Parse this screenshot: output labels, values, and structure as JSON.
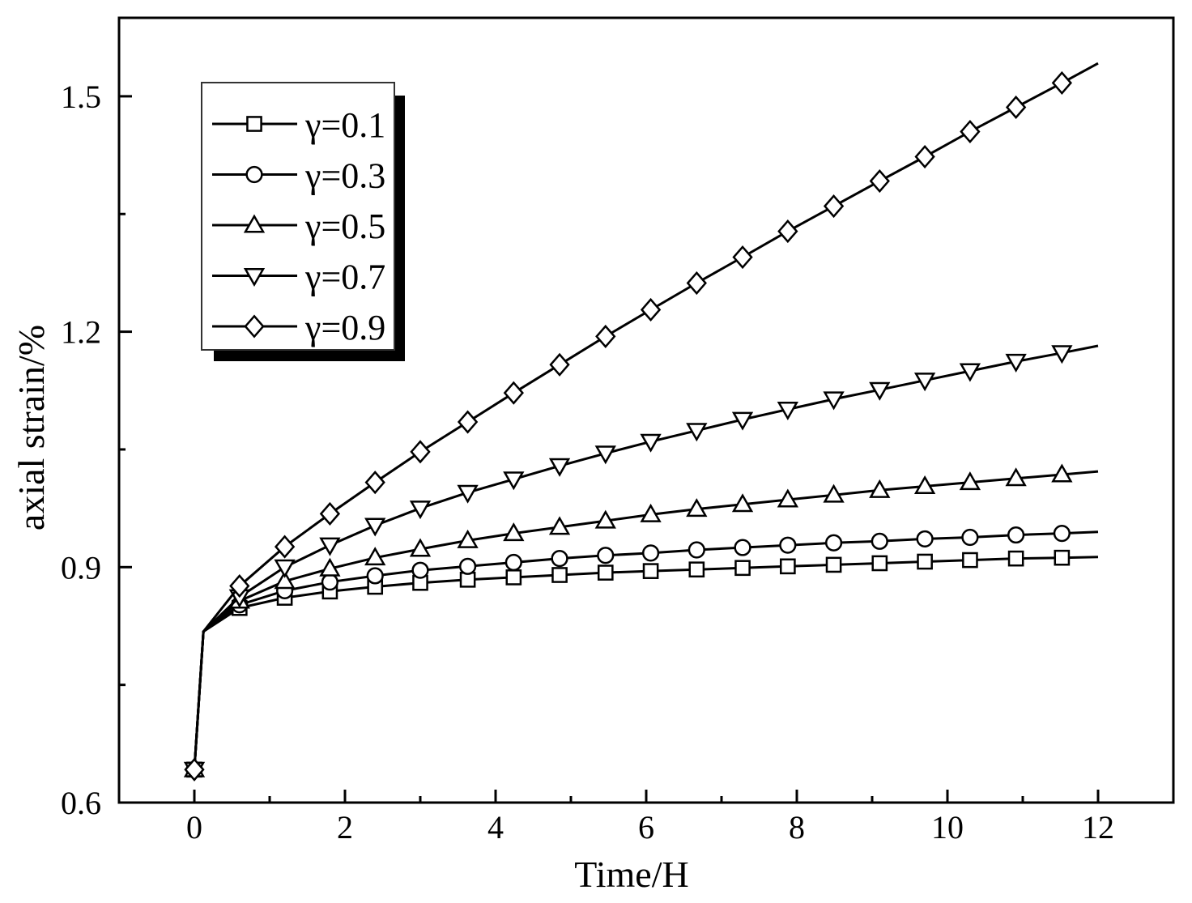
{
  "chart_data": {
    "type": "line",
    "title": "",
    "xlabel": "Time/H",
    "ylabel": "axial strain/%",
    "xlim": [
      -1,
      13
    ],
    "ylim": [
      0.6,
      1.6
    ],
    "xticks": [
      0,
      2,
      4,
      6,
      8,
      10,
      12
    ],
    "xtick_labels": [
      "0",
      "2",
      "4",
      "6",
      "8",
      "10",
      "12"
    ],
    "yticks": [
      0.6,
      0.9,
      1.2,
      1.5
    ],
    "ytick_labels": [
      "0.6",
      "0.9",
      "1.2",
      "1.5"
    ],
    "grid": false,
    "legend_position": "top-left",
    "marker_x": [
      0,
      0.6,
      1.2,
      1.8,
      2.4,
      3.0,
      3.63,
      4.24,
      4.85,
      5.46,
      6.06,
      6.67,
      7.28,
      7.88,
      8.49,
      9.1,
      9.7,
      10.3,
      10.91,
      11.52
    ],
    "series": [
      {
        "name": "γ=0.1",
        "marker": "square",
        "curve_x": [
          0,
          0.12,
          0.6,
          1.2,
          1.8,
          2.4,
          3.0,
          3.63,
          4.24,
          4.85,
          5.46,
          6.06,
          6.67,
          7.28,
          7.88,
          8.49,
          9.1,
          9.7,
          10.3,
          10.91,
          11.52,
          12.0
        ],
        "curve_y": [
          0.642,
          0.818,
          0.848,
          0.861,
          0.869,
          0.875,
          0.88,
          0.884,
          0.887,
          0.89,
          0.893,
          0.895,
          0.897,
          0.899,
          0.901,
          0.903,
          0.905,
          0.907,
          0.909,
          0.911,
          0.912,
          0.913
        ],
        "marker_y": [
          0.642,
          0.848,
          0.861,
          0.869,
          0.875,
          0.88,
          0.884,
          0.887,
          0.89,
          0.893,
          0.895,
          0.897,
          0.899,
          0.901,
          0.903,
          0.905,
          0.907,
          0.909,
          0.911,
          0.912
        ]
      },
      {
        "name": "γ=0.3",
        "marker": "circle",
        "curve_x": [
          0,
          0.12,
          0.6,
          1.2,
          1.8,
          2.4,
          3.0,
          3.63,
          4.24,
          4.85,
          5.46,
          6.06,
          6.67,
          7.28,
          7.88,
          8.49,
          9.1,
          9.7,
          10.3,
          10.91,
          11.52,
          12.0
        ],
        "curve_y": [
          0.642,
          0.818,
          0.852,
          0.87,
          0.881,
          0.889,
          0.896,
          0.901,
          0.906,
          0.911,
          0.915,
          0.918,
          0.922,
          0.925,
          0.928,
          0.931,
          0.933,
          0.936,
          0.938,
          0.941,
          0.943,
          0.945
        ],
        "marker_y": [
          0.642,
          0.852,
          0.87,
          0.881,
          0.889,
          0.896,
          0.901,
          0.906,
          0.911,
          0.915,
          0.918,
          0.922,
          0.925,
          0.928,
          0.931,
          0.933,
          0.936,
          0.938,
          0.941,
          0.943
        ]
      },
      {
        "name": "γ=0.5",
        "marker": "triangle-up",
        "curve_x": [
          0,
          0.12,
          0.6,
          1.2,
          1.8,
          2.4,
          3.0,
          3.63,
          4.24,
          4.85,
          5.46,
          6.06,
          6.67,
          7.28,
          7.88,
          8.49,
          9.1,
          9.7,
          10.3,
          10.91,
          11.52,
          12.0
        ],
        "curve_y": [
          0.642,
          0.818,
          0.857,
          0.882,
          0.898,
          0.912,
          0.923,
          0.934,
          0.943,
          0.951,
          0.959,
          0.967,
          0.974,
          0.98,
          0.986,
          0.992,
          0.998,
          1.003,
          1.008,
          1.013,
          1.018,
          1.022
        ],
        "marker_y": [
          0.642,
          0.857,
          0.882,
          0.898,
          0.912,
          0.923,
          0.934,
          0.943,
          0.951,
          0.959,
          0.967,
          0.974,
          0.98,
          0.986,
          0.992,
          0.998,
          1.003,
          1.008,
          1.013,
          1.018
        ]
      },
      {
        "name": "γ=0.7",
        "marker": "triangle-down",
        "curve_x": [
          0,
          0.12,
          0.6,
          1.2,
          1.8,
          2.4,
          3.0,
          3.63,
          4.24,
          4.85,
          5.46,
          6.06,
          6.67,
          7.28,
          7.88,
          8.49,
          9.1,
          9.7,
          10.3,
          10.91,
          11.52,
          12.0
        ],
        "curve_y": [
          0.642,
          0.818,
          0.862,
          0.9,
          0.928,
          0.953,
          0.975,
          0.995,
          1.012,
          1.029,
          1.045,
          1.06,
          1.074,
          1.088,
          1.101,
          1.114,
          1.126,
          1.138,
          1.15,
          1.162,
          1.173,
          1.182
        ],
        "marker_y": [
          0.642,
          0.862,
          0.9,
          0.928,
          0.953,
          0.975,
          0.995,
          1.012,
          1.029,
          1.045,
          1.06,
          1.074,
          1.088,
          1.101,
          1.114,
          1.126,
          1.138,
          1.15,
          1.162,
          1.173
        ]
      },
      {
        "name": "γ=0.9",
        "marker": "diamond",
        "curve_x": [
          0,
          0.12,
          0.6,
          1.2,
          1.8,
          2.4,
          3.0,
          3.63,
          4.24,
          4.85,
          5.46,
          6.06,
          6.67,
          7.28,
          7.88,
          8.49,
          9.1,
          9.7,
          10.3,
          10.91,
          11.52,
          12.0
        ],
        "curve_y": [
          0.642,
          0.818,
          0.876,
          0.926,
          0.968,
          1.008,
          1.047,
          1.085,
          1.122,
          1.158,
          1.194,
          1.228,
          1.262,
          1.295,
          1.328,
          1.36,
          1.392,
          1.423,
          1.455,
          1.486,
          1.517,
          1.542
        ],
        "marker_y": [
          0.642,
          0.876,
          0.926,
          0.968,
          1.008,
          1.047,
          1.085,
          1.122,
          1.158,
          1.194,
          1.228,
          1.262,
          1.295,
          1.328,
          1.36,
          1.392,
          1.423,
          1.455,
          1.486,
          1.517
        ]
      }
    ]
  }
}
